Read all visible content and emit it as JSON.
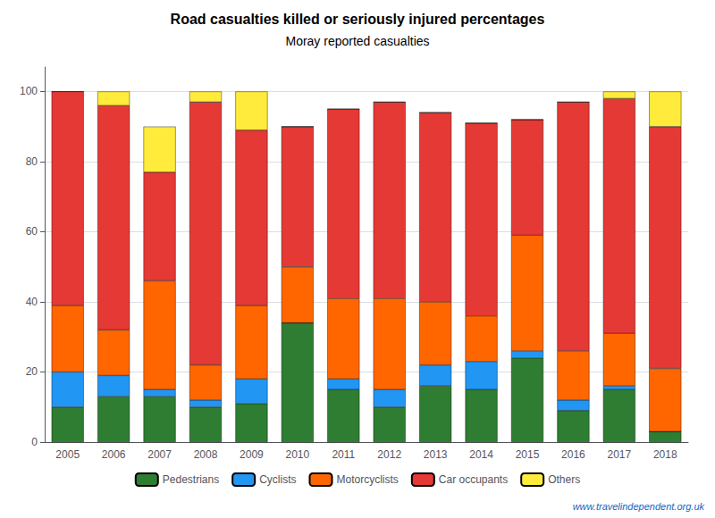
{
  "chart_data": {
    "type": "bar",
    "stacked": true,
    "title": "Road casualties killed or seriously injured percentages",
    "subtitle": "Moray reported casualties",
    "categories": [
      "2005",
      "2006",
      "2007",
      "2008",
      "2009",
      "2010",
      "2011",
      "2012",
      "2013",
      "2014",
      "2015",
      "2016",
      "2017",
      "2018"
    ],
    "series": [
      {
        "name": "Pedestrians",
        "color": "#2e7d32",
        "values": [
          10,
          13,
          13,
          10,
          11,
          34,
          15,
          10,
          16,
          15,
          24,
          9,
          15,
          3
        ]
      },
      {
        "name": "Cyclists",
        "color": "#2196f3",
        "values": [
          10,
          6,
          2,
          2,
          7,
          0,
          3,
          5,
          6,
          8,
          2,
          3,
          1,
          0
        ]
      },
      {
        "name": "Motorcyclists",
        "color": "#ff6600",
        "values": [
          19,
          13,
          31,
          10,
          21,
          16,
          23,
          26,
          18,
          13,
          33,
          14,
          15,
          18
        ]
      },
      {
        "name": "Car occupants",
        "color": "#e53935",
        "values": [
          61,
          64,
          31,
          75,
          50,
          40,
          54,
          56,
          54,
          55,
          33,
          71,
          67,
          69
        ]
      },
      {
        "name": "Others",
        "color": "#ffeb3b",
        "values": [
          0,
          4,
          13,
          3,
          11,
          0,
          0,
          0,
          0,
          0,
          0,
          0,
          2,
          10
        ]
      }
    ],
    "ylim": [
      0,
      107
    ],
    "yticks": [
      0,
      20,
      40,
      60,
      80,
      100
    ],
    "grid": true,
    "legend": "bottom",
    "annotations": [
      "www.travelindependent.org.uk"
    ]
  }
}
